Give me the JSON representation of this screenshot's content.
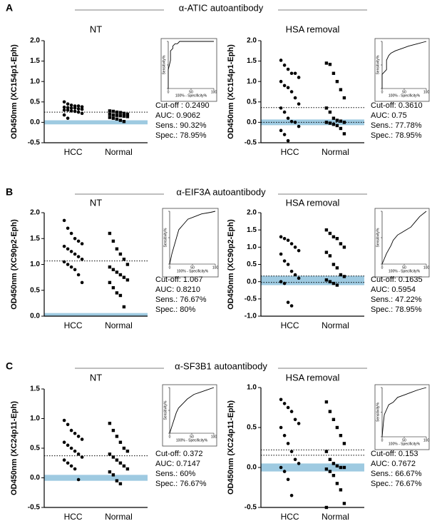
{
  "panels": [
    {
      "label": "A",
      "title": "α-ATIC autoantibody"
    },
    {
      "label": "B",
      "title": "α-EIF3A autoantibody"
    },
    {
      "label": "C",
      "title": "α-SF3B1 autoantibody"
    }
  ],
  "chart_data": [
    {
      "type": "dot",
      "title": "NT",
      "ylabel": "OD450nm (XC154p1-Eph)",
      "categories": [
        "HCC",
        "Normal"
      ],
      "groups": [
        [
          0.5,
          0.45,
          0.42,
          0.4,
          0.4,
          0.38,
          0.37,
          0.36,
          0.35,
          0.35,
          0.33,
          0.32,
          0.3,
          0.3,
          0.28,
          0.27,
          0.25,
          0.22,
          0.18,
          0.1
        ],
        [
          0.28,
          0.27,
          0.25,
          0.24,
          0.22,
          0.2,
          0.2,
          0.18,
          0.17,
          0.16,
          0.15,
          0.14,
          0.12,
          0.1,
          0.08,
          0.05,
          0.02
        ]
      ],
      "ref_lines": [
        0.249
      ],
      "band": [
        -0.05,
        0.05
      ],
      "band_color": "#9ecae1",
      "ylim": [
        -0.5,
        2
      ],
      "yticks": [
        -0.5,
        {
          "value": 0,
          "label": "0.0"
        },
        0.5,
        {
          "value": 1,
          "label": "1.0"
        },
        1.5,
        {
          "value": 2,
          "label": "2.0"
        }
      ]
    },
    {
      "type": "roc",
      "ylabel": "Sensitivity%",
      "xlabel": "100% - Specificity%",
      "x": [
        0,
        0,
        5,
        5,
        10,
        10,
        15,
        20,
        25,
        40,
        60,
        100
      ],
      "y": [
        0,
        40,
        60,
        80,
        85,
        90,
        95,
        95,
        100,
        100,
        100,
        100
      ],
      "xlim": [
        0,
        100
      ],
      "ylim": [
        0,
        100
      ],
      "xticks": [
        0,
        50,
        100
      ],
      "yticks": [
        0,
        50,
        100
      ],
      "annotations": [
        "Cut-off : 0.2490",
        "AUC: 0.9062",
        "Sens.: 90.32%",
        "Spec.: 78.95%"
      ]
    },
    {
      "type": "dot",
      "title": "HSA removal",
      "ylabel": "OD450nm (XC154p1-Eph)",
      "categories": [
        "HCC",
        "Normal"
      ],
      "groups": [
        [
          1.52,
          1.4,
          1.3,
          1.2,
          1.2,
          1.1,
          1.0,
          0.9,
          0.85,
          0.75,
          0.6,
          0.45,
          0.35,
          0.25,
          0.1,
          0.02,
          0,
          -0.1,
          -0.2,
          -0.3,
          -0.45
        ],
        [
          1.45,
          1.42,
          1.2,
          1.0,
          0.8,
          0.6,
          0.35,
          0.25,
          0.1,
          0.05,
          0.03,
          0,
          0,
          -0.02,
          -0.05,
          -0.08,
          -0.15,
          -0.28
        ]
      ],
      "ref_lines": [
        0.361,
        0
      ],
      "band": [
        -0.07,
        0.07
      ],
      "band_color": "#9ecae1",
      "ylim": [
        -0.5,
        2
      ],
      "yticks": [
        -0.5,
        {
          "value": 0,
          "label": "0.0"
        },
        0.5,
        {
          "value": 1,
          "label": "1.0"
        },
        1.5,
        {
          "value": 2,
          "label": "2.0"
        }
      ]
    },
    {
      "type": "roc",
      "ylabel": "Sensitivity%",
      "xlabel": "100% - Specificity%",
      "x": [
        0,
        0,
        10,
        10,
        15,
        20,
        30,
        45,
        60,
        80,
        100
      ],
      "y": [
        0,
        30,
        40,
        60,
        70,
        75,
        80,
        85,
        90,
        95,
        100
      ],
      "xlim": [
        0,
        100
      ],
      "ylim": [
        0,
        100
      ],
      "xticks": [
        0,
        50,
        100
      ],
      "yticks": [
        0,
        50,
        100
      ],
      "annotations": [
        "Cut-off: 0.3610",
        "AUC: 0.75",
        "Sens.: 77.78%",
        "Spec.: 78.95%"
      ]
    },
    {
      "type": "dot",
      "title": "NT",
      "ylabel": "OD450nm (XC90p2-Eph)",
      "categories": [
        "HCC",
        "Normal"
      ],
      "groups": [
        [
          1.85,
          1.7,
          1.6,
          1.5,
          1.45,
          1.4,
          1.35,
          1.3,
          1.25,
          1.2,
          1.15,
          1.1,
          1.05,
          1.0,
          0.95,
          0.9,
          0.8,
          0.65
        ],
        [
          1.6,
          1.45,
          1.3,
          1.2,
          1.1,
          1.0,
          0.95,
          0.9,
          0.85,
          0.8,
          0.75,
          0.7,
          0.65,
          0.55,
          0.45,
          0.4,
          0.18
        ]
      ],
      "ref_lines": [
        1.067
      ],
      "band": [
        0,
        0.06
      ],
      "band_color": "#9ecae1",
      "ylim": [
        0,
        2
      ],
      "yticks": [
        {
          "value": 0,
          "label": "0.0"
        },
        0.5,
        {
          "value": 1,
          "label": "1.0"
        },
        1.5,
        {
          "value": 2,
          "label": "2.0"
        }
      ]
    },
    {
      "type": "roc",
      "ylabel": "Sensitivity%",
      "xlabel": "100% - Specificity%",
      "x": [
        0,
        5,
        10,
        15,
        20,
        30,
        40,
        55,
        70,
        90,
        100
      ],
      "y": [
        0,
        20,
        35,
        50,
        65,
        75,
        85,
        90,
        95,
        98,
        100
      ],
      "xlim": [
        0,
        100
      ],
      "ylim": [
        0,
        100
      ],
      "xticks": [
        0,
        50,
        100
      ],
      "yticks": [
        0,
        50,
        100
      ],
      "annotations": [
        "Cut-off: 1.067",
        "AUC: 0.8210",
        "Sens.: 76.67%",
        "Spec.: 80%"
      ]
    },
    {
      "type": "dot",
      "title": "HSA removal",
      "ylabel": "OD450nm (XC90p2-Eph)",
      "categories": [
        "HCC",
        "Normal"
      ],
      "groups": [
        [
          1.3,
          1.25,
          1.2,
          1.1,
          1.0,
          0.9,
          0.8,
          0.6,
          0.5,
          0.3,
          0.2,
          0.1,
          0,
          -0.05,
          -0.6,
          -0.7
        ],
        [
          1.5,
          1.4,
          1.3,
          1.25,
          1.1,
          1.0,
          0.85,
          0.75,
          0.5,
          0.4,
          0.2,
          0.15,
          0.05,
          0,
          -0.05,
          -0.1
        ]
      ],
      "ref_lines": [
        0.1635,
        -0.02
      ],
      "band": [
        -0.1,
        0.17
      ],
      "band_color": "#9ecae1",
      "ylim": [
        -1,
        2
      ],
      "yticks": [
        {
          "value": -1,
          "label": "-1.0"
        },
        -0.5,
        {
          "value": 0,
          "label": "0.0"
        },
        0.5,
        {
          "value": 1,
          "label": "1.0"
        },
        1.5,
        {
          "value": 2,
          "label": "2.0"
        }
      ]
    },
    {
      "type": "roc",
      "ylabel": "Sensitivity%",
      "xlabel": "100% - Specificity%",
      "x": [
        0,
        10,
        20,
        25,
        35,
        45,
        55,
        65,
        75,
        85,
        100
      ],
      "y": [
        0,
        20,
        35,
        45,
        55,
        60,
        65,
        70,
        80,
        90,
        100
      ],
      "xlim": [
        0,
        100
      ],
      "ylim": [
        0,
        100
      ],
      "xticks": [
        0,
        50,
        100
      ],
      "yticks": [
        0,
        50,
        100
      ],
      "annotations": [
        "Cut-off: 0.1635",
        "AUC: 0.5954",
        "Sens.: 47.22%",
        "Spec.: 78.95%"
      ]
    },
    {
      "type": "dot",
      "title": "NT",
      "ylabel": "OD450nm (XC24p11-Eph)",
      "categories": [
        "HCC",
        "Normal"
      ],
      "groups": [
        [
          0.97,
          0.9,
          0.8,
          0.75,
          0.7,
          0.65,
          0.6,
          0.55,
          0.5,
          0.45,
          0.4,
          0.35,
          0.3,
          0.25,
          0.2,
          0.15,
          -0.03
        ],
        [
          0.92,
          0.8,
          0.7,
          0.6,
          0.5,
          0.45,
          0.4,
          0.35,
          0.3,
          0.25,
          0.2,
          0.15,
          0.1,
          0.05,
          -0.05,
          -0.1
        ]
      ],
      "ref_lines": [
        0.372
      ],
      "band": [
        -0.05,
        0.05
      ],
      "band_color": "#9ecae1",
      "ylim": [
        -0.5,
        1.5
      ],
      "yticks": [
        -0.5,
        {
          "value": 0,
          "label": "0.0"
        },
        0.5,
        {
          "value": 1,
          "label": "1.0"
        },
        1.5
      ]
    },
    {
      "type": "roc",
      "ylabel": "Sensitivity%",
      "xlabel": "100% - Specificity%",
      "x": [
        0,
        5,
        10,
        15,
        20,
        30,
        40,
        55,
        70,
        85,
        100
      ],
      "y": [
        0,
        15,
        30,
        45,
        55,
        65,
        75,
        85,
        90,
        95,
        100
      ],
      "xlim": [
        0,
        100
      ],
      "ylim": [
        0,
        100
      ],
      "xticks": [
        0,
        50,
        100
      ],
      "yticks": [
        0,
        50,
        100
      ],
      "annotations": [
        "Cut-off: 0.372",
        "AUC: 0.7147",
        "Sens.: 60%",
        "Spec.: 76.67%"
      ]
    },
    {
      "type": "dot",
      "title": "HSA removal",
      "ylabel": "OD450nm (XC24p11-Eph)",
      "categories": [
        "HCC",
        "Normal"
      ],
      "groups": [
        [
          0.85,
          0.8,
          0.75,
          0.7,
          0.6,
          0.55,
          0.5,
          0.4,
          0.3,
          0.2,
          0.1,
          0.05,
          0,
          -0.05,
          -0.15,
          -0.35
        ],
        [
          0.82,
          0.7,
          0.6,
          0.5,
          0.4,
          0.3,
          0.2,
          0.1,
          0.05,
          0.02,
          0,
          0,
          -0.02,
          -0.05,
          -0.1,
          -0.2,
          -0.28,
          -0.45,
          -0.5
        ]
      ],
      "ref_lines": [
        0.153,
        0.22
      ],
      "band": [
        -0.05,
        0.05
      ],
      "band_color": "#9ecae1",
      "ylim": [
        -0.5,
        1
      ],
      "yticks": [
        -0.5,
        {
          "value": 0,
          "label": "0.0"
        },
        0.5,
        {
          "value": 1,
          "label": "1.0"
        }
      ]
    },
    {
      "type": "roc",
      "ylabel": "Sensitivity%",
      "xlabel": "100% - Specificity%",
      "x": [
        0,
        3,
        5,
        10,
        15,
        25,
        35,
        50,
        65,
        80,
        100
      ],
      "y": [
        0,
        30,
        45,
        55,
        65,
        70,
        80,
        85,
        90,
        95,
        100
      ],
      "xlim": [
        0,
        100
      ],
      "ylim": [
        0,
        100
      ],
      "xticks": [
        0,
        50,
        100
      ],
      "yticks": [
        0,
        50,
        100
      ],
      "annotations": [
        "Cut-off: 0.153",
        "AUC: 0.7672",
        "Sens.: 66.67%",
        "Spec.: 76.67%"
      ]
    }
  ]
}
